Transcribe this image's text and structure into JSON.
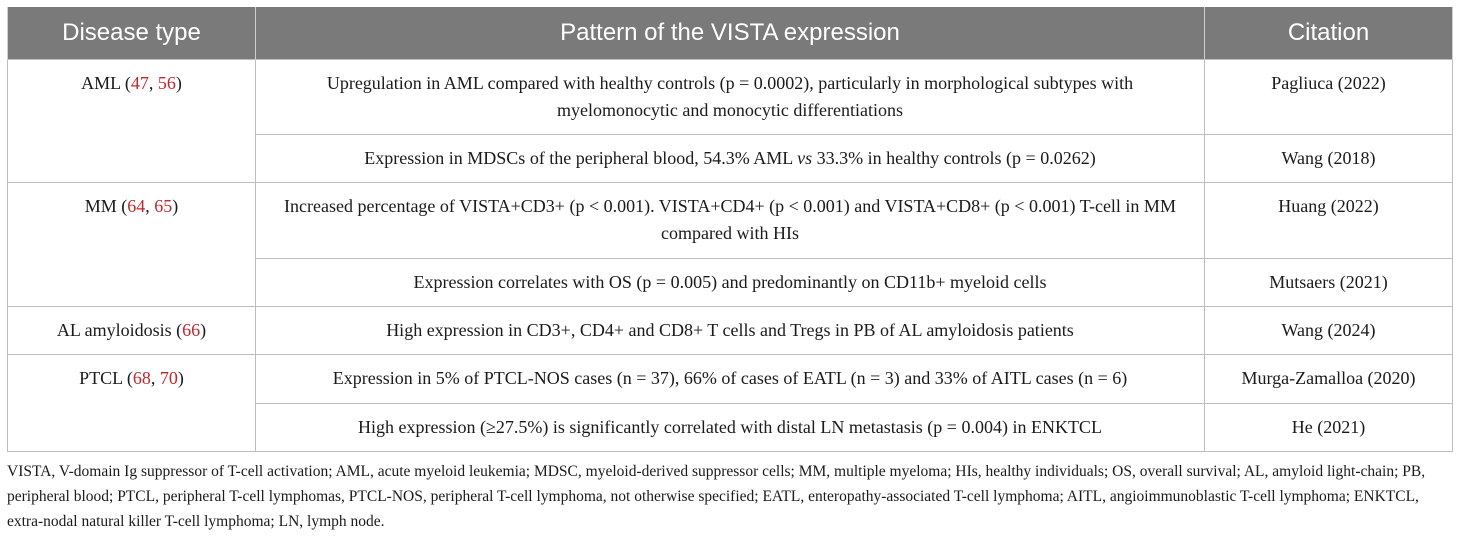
{
  "table": {
    "headers": [
      "Disease type",
      "Pattern of the VISTA expression",
      "Citation"
    ],
    "groups": [
      {
        "disease": "AML",
        "refs": [
          "47",
          "56"
        ],
        "rows": [
          {
            "pattern": "Upregulation in AML compared with healthy controls (p = 0.0002), particularly in morphological subtypes with myelomonocytic and monocytic differentiations",
            "citation": "Pagliuca (2022)"
          },
          {
            "pattern_a": "Expression in MDSCs of the peripheral blood, 54.3% AML ",
            "pattern_vs": "vs",
            "pattern_b": " 33.3% in healthy controls (p = 0.0262)",
            "citation": "Wang (2018)"
          }
        ]
      },
      {
        "disease": "MM",
        "refs": [
          "64",
          "65"
        ],
        "rows": [
          {
            "pattern": "Increased percentage of VISTA+CD3+ (p < 0.001). VISTA+CD4+ (p < 0.001) and VISTA+CD8+ (p < 0.001) T-cell in MM compared with HIs",
            "citation": "Huang (2022)"
          },
          {
            "pattern": "Expression correlates with OS (p = 0.005) and predominantly on CD11b+ myeloid cells",
            "citation": "Mutsaers (2021)"
          }
        ]
      },
      {
        "disease": "AL amyloidosis",
        "refs": [
          "66"
        ],
        "rows": [
          {
            "pattern": "High expression in CD3+, CD4+ and CD8+ T cells and Tregs in PB of AL amyloidosis patients",
            "citation": "Wang (2024)"
          }
        ]
      },
      {
        "disease": "PTCL",
        "refs": [
          "68",
          "70"
        ],
        "rows": [
          {
            "pattern": "Expression in 5% of PTCL-NOS cases (n = 37), 66% of cases of EATL (n = 3) and 33% of AITL cases (n = 6)",
            "citation": "Murga-Zamalloa (2020)"
          },
          {
            "pattern": "High expression (≥27.5%) is significantly correlated with distal LN metastasis (p = 0.004) in ENKTCL",
            "citation": "He (2021)"
          }
        ]
      }
    ]
  },
  "footnote": "VISTA, V-domain Ig suppressor of T-cell activation; AML, acute myeloid leukemia; MDSC, myeloid-derived suppressor cells; MM, multiple myeloma; HIs, healthy individuals; OS, overall survival; AL, amyloid light-chain; PB, peripheral blood; PTCL, peripheral T-cell lymphomas, PTCL-NOS, peripheral T-cell lymphoma, not otherwise specified; EATL, enteropathy-associated T-cell lymphoma; AITL, angioimmunoblastic T-cell lymphoma; ENKTCL, extra-nodal natural killer T-cell lymphoma; LN, lymph node."
}
